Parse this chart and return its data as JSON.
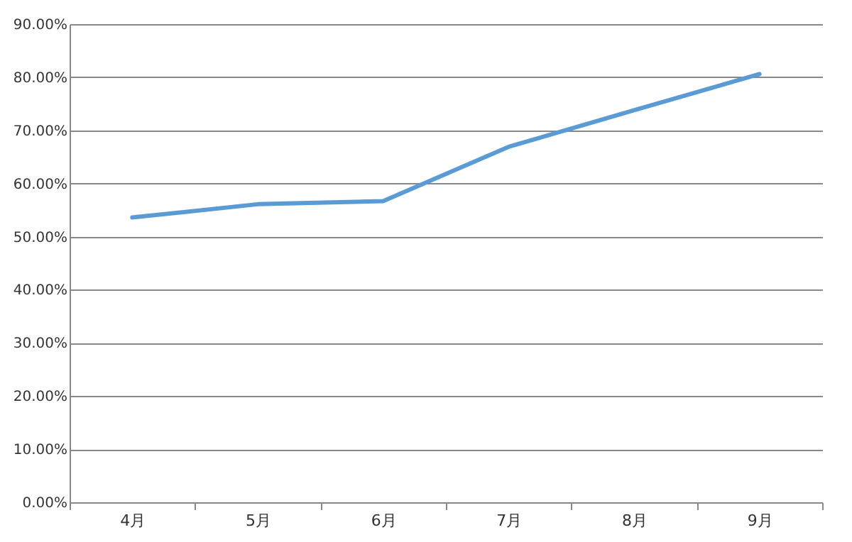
{
  "chart_data": {
    "type": "line",
    "categories": [
      "4月",
      "5月",
      "6月",
      "7月",
      "8月",
      "9月"
    ],
    "series": [
      {
        "color": "#5b9bd5",
        "values": [
          53.6,
          56.1,
          56.7,
          66.9,
          73.8,
          80.6
        ]
      }
    ],
    "ylim": [
      0,
      90
    ],
    "yticks": [
      {
        "value": 0,
        "label": "0.00%"
      },
      {
        "value": 10,
        "label": "10.00%"
      },
      {
        "value": 20,
        "label": "20.00%"
      },
      {
        "value": 30,
        "label": "30.00%"
      },
      {
        "value": 40,
        "label": "40.00%"
      },
      {
        "value": 50,
        "label": "50.00%"
      },
      {
        "value": 60,
        "label": "60.00%"
      },
      {
        "value": 70,
        "label": "70.00%"
      },
      {
        "value": 80,
        "label": "80.00%"
      },
      {
        "value": 90,
        "label": "90.00%"
      }
    ],
    "grid": "y",
    "line_style": "solid"
  }
}
